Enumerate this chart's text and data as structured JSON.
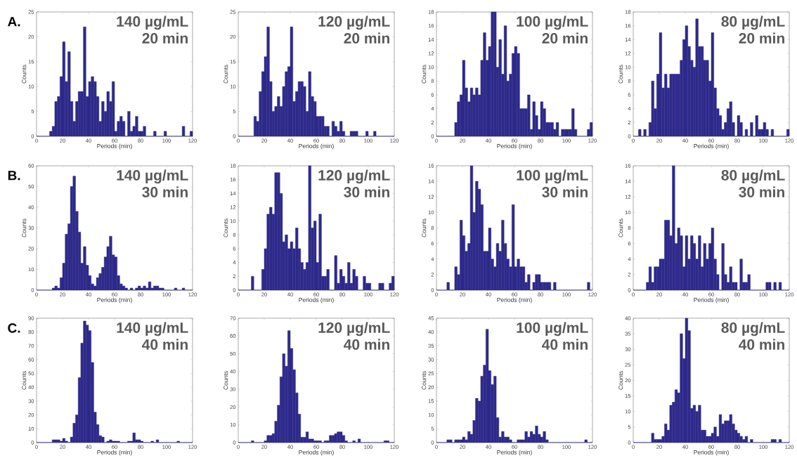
{
  "chart_data": [
    {
      "type": "histogram",
      "title": "140 µg/mL",
      "subtitle": "20 min",
      "xlabel": "Periods (min)",
      "ylabel": "Counts",
      "annotations": [
        "A."
      ],
      "color": "#2e2a8a",
      "xlim": [
        0,
        120
      ],
      "ylim": [
        0,
        25
      ],
      "xticks": [
        0,
        20,
        40,
        60,
        80,
        100,
        120
      ],
      "yticks": [
        0,
        5,
        10,
        15,
        20,
        25
      ],
      "bins": [
        0,
        2,
        4,
        6,
        8,
        10,
        12,
        14,
        16,
        18,
        20,
        22,
        24,
        26,
        28,
        30,
        32,
        34,
        36,
        38,
        40,
        42,
        44,
        46,
        48,
        50,
        52,
        54,
        56,
        58,
        60,
        62,
        64,
        66,
        68,
        70,
        72,
        74,
        76,
        78,
        80,
        82,
        84,
        86,
        88,
        90,
        92,
        94,
        96,
        98,
        100,
        102,
        104,
        106,
        108,
        110,
        112,
        114,
        116,
        118,
        120
      ],
      "values": [
        0,
        0,
        0,
        0,
        0,
        1,
        2,
        7,
        8,
        12,
        19,
        11,
        17,
        7,
        3,
        7,
        9,
        9,
        22,
        8,
        11,
        12,
        11,
        8,
        3,
        7,
        5,
        9,
        7,
        11,
        1,
        3,
        4,
        3,
        0,
        5,
        1,
        2,
        4,
        1,
        1,
        2,
        0,
        0,
        0,
        1,
        0,
        0,
        0,
        1,
        0,
        0,
        0,
        0,
        0,
        0,
        2,
        0,
        0,
        1
      ]
    },
    {
      "type": "histogram",
      "title": "120 µg/mL",
      "subtitle": "20 min",
      "xlabel": "Periods (min)",
      "ylabel": "Counts",
      "color": "#2e2a8a",
      "xlim": [
        0,
        120
      ],
      "ylim": [
        0,
        25
      ],
      "xticks": [
        0,
        20,
        40,
        60,
        80,
        100,
        120
      ],
      "yticks": [
        0,
        5,
        10,
        15,
        20,
        25
      ],
      "bins": [
        0,
        2,
        4,
        6,
        8,
        10,
        12,
        14,
        16,
        18,
        20,
        22,
        24,
        26,
        28,
        30,
        32,
        34,
        36,
        38,
        40,
        42,
        44,
        46,
        48,
        50,
        52,
        54,
        56,
        58,
        60,
        62,
        64,
        66,
        68,
        70,
        72,
        74,
        76,
        78,
        80,
        82,
        84,
        86,
        88,
        90,
        92,
        94,
        96,
        98,
        100,
        102,
        104,
        106,
        108,
        110,
        112,
        114,
        116,
        118,
        120
      ],
      "values": [
        0,
        0,
        0,
        0,
        0,
        0,
        4,
        3,
        9,
        13,
        16,
        22,
        11,
        5,
        6,
        8,
        6,
        10,
        13,
        14,
        22,
        7,
        9,
        11,
        11,
        10,
        5,
        13,
        8,
        7,
        4,
        4,
        4,
        2,
        2,
        0,
        3,
        2,
        1,
        3,
        1,
        0,
        0,
        1,
        1,
        1,
        0,
        0,
        0,
        1,
        0,
        0,
        1,
        0,
        0,
        0,
        0,
        0,
        0,
        0
      ]
    },
    {
      "type": "histogram",
      "title": "100 µg/mL",
      "subtitle": "20 min",
      "xlabel": "Periods (min)",
      "ylabel": "Counts",
      "color": "#2e2a8a",
      "xlim": [
        0,
        120
      ],
      "ylim": [
        0,
        18
      ],
      "xticks": [
        0,
        20,
        40,
        60,
        80,
        100,
        120
      ],
      "yticks": [
        0,
        2,
        4,
        6,
        8,
        10,
        12,
        14,
        16,
        18
      ],
      "bins": [
        0,
        2,
        4,
        6,
        8,
        10,
        12,
        14,
        16,
        18,
        20,
        22,
        24,
        26,
        28,
        30,
        32,
        34,
        36,
        38,
        40,
        42,
        44,
        46,
        48,
        50,
        52,
        54,
        56,
        58,
        60,
        62,
        64,
        66,
        68,
        70,
        72,
        74,
        76,
        78,
        80,
        82,
        84,
        86,
        88,
        90,
        92,
        94,
        96,
        98,
        100,
        102,
        104,
        106,
        108,
        110,
        112,
        114,
        116,
        118,
        120
      ],
      "values": [
        0,
        0,
        0,
        0,
        0,
        0,
        0,
        2,
        5,
        6,
        11,
        7,
        5,
        7,
        6,
        7,
        6,
        11,
        15,
        11,
        13,
        18,
        18,
        10,
        14,
        9,
        16,
        8,
        9,
        12,
        13,
        12,
        4,
        4,
        4,
        6,
        1,
        5,
        3,
        1,
        5,
        4,
        2,
        2,
        2,
        1,
        2,
        0,
        1,
        1,
        1,
        1,
        4,
        1,
        0,
        0,
        0,
        0,
        1,
        2
      ]
    },
    {
      "type": "histogram",
      "title": "80 µg/mL",
      "subtitle": "20 min",
      "xlabel": "Periods (min)",
      "ylabel": "Counts",
      "color": "#2e2a8a",
      "xlim": [
        0,
        120
      ],
      "ylim": [
        0,
        18
      ],
      "xticks": [
        0,
        20,
        40,
        60,
        80,
        100,
        120
      ],
      "yticks": [
        0,
        2,
        4,
        6,
        8,
        10,
        12,
        14,
        16,
        18
      ],
      "bins": [
        0,
        2,
        4,
        6,
        8,
        10,
        12,
        14,
        16,
        18,
        20,
        22,
        24,
        26,
        28,
        30,
        32,
        34,
        36,
        38,
        40,
        42,
        44,
        46,
        48,
        50,
        52,
        54,
        56,
        58,
        60,
        62,
        64,
        66,
        68,
        70,
        72,
        74,
        76,
        78,
        80,
        82,
        84,
        86,
        88,
        90,
        92,
        94,
        96,
        98,
        100,
        102,
        104,
        106,
        108,
        110,
        112,
        114,
        116,
        118,
        120
      ],
      "values": [
        0,
        0,
        1,
        0,
        1,
        0,
        2,
        8,
        4,
        9,
        15,
        7,
        9,
        7,
        9,
        9,
        9,
        9,
        11,
        14,
        16,
        13,
        11,
        10,
        17,
        13,
        13,
        11,
        11,
        8,
        15,
        7,
        4,
        3,
        1,
        2,
        4,
        5,
        2,
        0,
        3,
        2,
        0,
        1,
        0,
        2,
        0,
        3,
        1,
        1,
        2,
        1,
        0,
        1,
        0,
        0,
        0,
        0,
        0,
        1
      ]
    },
    {
      "type": "histogram",
      "title": "140 µg/mL",
      "subtitle": "30 min",
      "xlabel": "Periods (min)",
      "ylabel": "Counts",
      "annotations": [
        "B."
      ],
      "color": "#2e2a8a",
      "xlim": [
        0,
        120
      ],
      "ylim": [
        0,
        60
      ],
      "xticks": [
        0,
        20,
        40,
        60,
        80,
        100,
        120
      ],
      "yticks": [
        0,
        10,
        20,
        30,
        40,
        50,
        60
      ],
      "bins": [
        0,
        2,
        4,
        6,
        8,
        10,
        12,
        14,
        16,
        18,
        20,
        22,
        24,
        26,
        28,
        30,
        32,
        34,
        36,
        38,
        40,
        42,
        44,
        46,
        48,
        50,
        52,
        54,
        56,
        58,
        60,
        62,
        64,
        66,
        68,
        70,
        72,
        74,
        76,
        78,
        80,
        82,
        84,
        86,
        88,
        90,
        92,
        94,
        96,
        98,
        100,
        102,
        104,
        106,
        108,
        110,
        112,
        114,
        116,
        118,
        120
      ],
      "values": [
        0,
        0,
        0,
        0,
        0,
        0,
        1,
        2,
        1,
        6,
        13,
        27,
        32,
        50,
        55,
        38,
        28,
        13,
        21,
        12,
        7,
        3,
        2,
        6,
        8,
        11,
        16,
        21,
        26,
        17,
        16,
        7,
        3,
        2,
        1,
        0,
        1,
        0,
        1,
        2,
        1,
        2,
        1,
        4,
        1,
        2,
        2,
        1,
        1,
        0,
        0,
        0,
        0,
        1,
        0,
        0,
        1,
        0,
        0,
        0
      ]
    },
    {
      "type": "histogram",
      "title": "120 µg/mL",
      "subtitle": "30 min",
      "xlabel": "Periods (min)",
      "ylabel": "Counts",
      "color": "#2e2a8a",
      "xlim": [
        0,
        120
      ],
      "ylim": [
        0,
        18
      ],
      "xticks": [
        0,
        20,
        40,
        60,
        80,
        100,
        120
      ],
      "yticks": [
        0,
        2,
        4,
        6,
        8,
        10,
        12,
        14,
        16,
        18
      ],
      "bins": [
        0,
        2,
        4,
        6,
        8,
        10,
        12,
        14,
        16,
        18,
        20,
        22,
        24,
        26,
        28,
        30,
        32,
        34,
        36,
        38,
        40,
        42,
        44,
        46,
        48,
        50,
        52,
        54,
        56,
        58,
        60,
        62,
        64,
        66,
        68,
        70,
        72,
        74,
        76,
        78,
        80,
        82,
        84,
        86,
        88,
        90,
        92,
        94,
        96,
        98,
        100,
        102,
        104,
        106,
        108,
        110,
        112,
        114,
        116,
        118,
        120
      ],
      "values": [
        0,
        0,
        0,
        0,
        0,
        2,
        0,
        0,
        0,
        3,
        6,
        11,
        12,
        11,
        17,
        17,
        14,
        7,
        8,
        6,
        7,
        6,
        9,
        6,
        4,
        3,
        4,
        18,
        9,
        10,
        4,
        11,
        2,
        2,
        3,
        0,
        0,
        5,
        1,
        3,
        2,
        1,
        4,
        1,
        3,
        2,
        0,
        0,
        2,
        1,
        1,
        0,
        0,
        0,
        1,
        1,
        0,
        0,
        1,
        2
      ]
    },
    {
      "type": "histogram",
      "title": "100 µg/mL",
      "subtitle": "30 min",
      "xlabel": "Periods (min)",
      "ylabel": "Counts",
      "color": "#2e2a8a",
      "xlim": [
        0,
        120
      ],
      "ylim": [
        0,
        16
      ],
      "xticks": [
        0,
        20,
        40,
        60,
        80,
        100,
        120
      ],
      "yticks": [
        0,
        2,
        4,
        6,
        8,
        10,
        12,
        14,
        16
      ],
      "bins": [
        0,
        2,
        4,
        6,
        8,
        10,
        12,
        14,
        16,
        18,
        20,
        22,
        24,
        26,
        28,
        30,
        32,
        34,
        36,
        38,
        40,
        42,
        44,
        46,
        48,
        50,
        52,
        54,
        56,
        58,
        60,
        62,
        64,
        66,
        68,
        70,
        72,
        74,
        76,
        78,
        80,
        82,
        84,
        86,
        88,
        90,
        92,
        94,
        96,
        98,
        100,
        102,
        104,
        106,
        108,
        110,
        112,
        114,
        116,
        118,
        120
      ],
      "values": [
        0,
        0,
        0,
        0,
        1,
        0,
        0,
        3,
        2,
        9,
        7,
        5,
        6,
        16,
        10,
        14,
        13,
        11,
        5,
        5,
        8,
        4,
        3,
        6,
        5,
        9,
        6,
        4,
        3,
        11,
        3,
        4,
        3,
        3,
        1,
        2,
        0,
        1,
        2,
        2,
        1,
        1,
        1,
        1,
        0,
        1,
        0,
        0,
        0,
        0,
        0,
        0,
        0,
        0,
        0,
        0,
        0,
        0,
        1,
        0
      ]
    },
    {
      "type": "histogram",
      "title": "80 µg/mL",
      "subtitle": "30 min",
      "xlabel": "Periods (min)",
      "ylabel": "Counts",
      "color": "#2e2a8a",
      "xlim": [
        0,
        120
      ],
      "ylim": [
        0,
        16
      ],
      "xticks": [
        0,
        20,
        40,
        60,
        80,
        100,
        120
      ],
      "yticks": [
        0,
        2,
        4,
        6,
        8,
        10,
        12,
        14,
        16
      ],
      "bins": [
        0,
        2,
        4,
        6,
        8,
        10,
        12,
        14,
        16,
        18,
        20,
        22,
        24,
        26,
        28,
        30,
        32,
        34,
        36,
        38,
        40,
        42,
        44,
        46,
        48,
        50,
        52,
        54,
        56,
        58,
        60,
        62,
        64,
        66,
        68,
        70,
        72,
        74,
        76,
        78,
        80,
        82,
        84,
        86,
        88,
        90,
        92,
        94,
        96,
        98,
        100,
        102,
        104,
        106,
        108,
        110,
        112,
        114,
        116,
        118,
        120
      ],
      "values": [
        0,
        0,
        0,
        0,
        0,
        1,
        3,
        1,
        3,
        3,
        4,
        4,
        9,
        9,
        7,
        16,
        6,
        8,
        7,
        3,
        7,
        4,
        7,
        6,
        4,
        7,
        3,
        6,
        4,
        6,
        8,
        4,
        2,
        0,
        6,
        2,
        1,
        3,
        1,
        1,
        0,
        4,
        1,
        1,
        2,
        0,
        0,
        0,
        0,
        0,
        0,
        1,
        1,
        0,
        1,
        0,
        1,
        0,
        0,
        0
      ]
    },
    {
      "type": "histogram",
      "title": "140 µg/mL",
      "subtitle": "40 min",
      "xlabel": "Periods (min)",
      "ylabel": "Counts",
      "annotations": [
        "C."
      ],
      "color": "#2e2a8a",
      "xlim": [
        0,
        120
      ],
      "ylim": [
        0,
        90
      ],
      "xticks": [
        0,
        20,
        40,
        60,
        80,
        100,
        120
      ],
      "yticks": [
        0,
        10,
        20,
        30,
        40,
        50,
        60,
        70,
        80,
        90
      ],
      "bins": [
        0,
        2,
        4,
        6,
        8,
        10,
        12,
        14,
        16,
        18,
        20,
        22,
        24,
        26,
        28,
        30,
        32,
        34,
        36,
        38,
        40,
        42,
        44,
        46,
        48,
        50,
        52,
        54,
        56,
        58,
        60,
        62,
        64,
        66,
        68,
        70,
        72,
        74,
        76,
        78,
        80,
        82,
        84,
        86,
        88,
        90,
        92,
        94,
        96,
        98,
        100,
        102,
        104,
        106,
        108,
        110,
        112,
        114,
        116,
        118,
        120
      ],
      "values": [
        0,
        0,
        0,
        0,
        0,
        0,
        2,
        2,
        2,
        1,
        3,
        1,
        0,
        4,
        14,
        20,
        47,
        72,
        88,
        85,
        81,
        58,
        22,
        13,
        5,
        4,
        0,
        1,
        2,
        1,
        1,
        1,
        0,
        0,
        0,
        1,
        1,
        7,
        2,
        2,
        1,
        0,
        0,
        0,
        1,
        0,
        2,
        0,
        0,
        0,
        0,
        0,
        0,
        0,
        1,
        0,
        0,
        0,
        0,
        0
      ]
    },
    {
      "type": "histogram",
      "title": "120 µg/mL",
      "subtitle": "40 min",
      "xlabel": "Periods (min)",
      "ylabel": "Counts",
      "color": "#2e2a8a",
      "xlim": [
        0,
        120
      ],
      "ylim": [
        0,
        70
      ],
      "xticks": [
        0,
        20,
        40,
        60,
        80,
        100,
        120
      ],
      "yticks": [
        0,
        10,
        20,
        30,
        40,
        50,
        60,
        70
      ],
      "bins": [
        0,
        2,
        4,
        6,
        8,
        10,
        12,
        14,
        16,
        18,
        20,
        22,
        24,
        26,
        28,
        30,
        32,
        34,
        36,
        38,
        40,
        42,
        44,
        46,
        48,
        50,
        52,
        54,
        56,
        58,
        60,
        62,
        64,
        66,
        68,
        70,
        72,
        74,
        76,
        78,
        80,
        82,
        84,
        86,
        88,
        90,
        92,
        94,
        96,
        98,
        100,
        102,
        104,
        106,
        108,
        110,
        112,
        114,
        116,
        118,
        120
      ],
      "values": [
        0,
        0,
        0,
        0,
        0,
        1,
        0,
        0,
        0,
        0,
        1,
        4,
        4,
        5,
        12,
        21,
        37,
        50,
        43,
        63,
        53,
        41,
        28,
        16,
        3,
        3,
        6,
        2,
        2,
        1,
        1,
        1,
        0,
        1,
        1,
        4,
        4,
        5,
        6,
        6,
        4,
        1,
        0,
        0,
        1,
        0,
        2,
        0,
        0,
        0,
        0,
        0,
        0,
        0,
        0,
        0,
        1,
        1,
        0,
        0
      ]
    },
    {
      "type": "histogram",
      "title": "100 µg/mL",
      "subtitle": "40 min",
      "xlabel": "Periods (min)",
      "ylabel": "Counts",
      "color": "#2e2a8a",
      "xlim": [
        0,
        120
      ],
      "ylim": [
        0,
        45
      ],
      "xticks": [
        0,
        20,
        40,
        60,
        80,
        100,
        120
      ],
      "yticks": [
        0,
        5,
        10,
        15,
        20,
        25,
        30,
        35,
        40,
        45
      ],
      "bins": [
        0,
        2,
        4,
        6,
        8,
        10,
        12,
        14,
        16,
        18,
        20,
        22,
        24,
        26,
        28,
        30,
        32,
        34,
        36,
        38,
        40,
        42,
        44,
        46,
        48,
        50,
        52,
        54,
        56,
        58,
        60,
        62,
        64,
        66,
        68,
        70,
        72,
        74,
        76,
        78,
        80,
        82,
        84,
        86,
        88,
        90,
        92,
        94,
        96,
        98,
        100,
        102,
        104,
        106,
        108,
        110,
        112,
        114,
        116,
        118,
        120
      ],
      "values": [
        0,
        0,
        0,
        0,
        1,
        1,
        0,
        1,
        1,
        1,
        2,
        1,
        4,
        3,
        8,
        16,
        15,
        24,
        28,
        41,
        26,
        21,
        24,
        9,
        2,
        4,
        2,
        2,
        1,
        0,
        0,
        1,
        1,
        1,
        4,
        2,
        4,
        3,
        6,
        3,
        2,
        4,
        1,
        0,
        0,
        0,
        0,
        0,
        0,
        0,
        0,
        0,
        0,
        0,
        0,
        0,
        0,
        1,
        0,
        0
      ]
    },
    {
      "type": "histogram",
      "title": "80 µg/mL",
      "subtitle": "40 min",
      "xlabel": "Periods (min)",
      "ylabel": "Counts",
      "color": "#2e2a8a",
      "xlim": [
        0,
        120
      ],
      "ylim": [
        0,
        40
      ],
      "xticks": [
        0,
        20,
        40,
        60,
        80,
        100,
        120
      ],
      "yticks": [
        0,
        5,
        10,
        15,
        20,
        25,
        30,
        35,
        40
      ],
      "bins": [
        0,
        2,
        4,
        6,
        8,
        10,
        12,
        14,
        16,
        18,
        20,
        22,
        24,
        26,
        28,
        30,
        32,
        34,
        36,
        38,
        40,
        42,
        44,
        46,
        48,
        50,
        52,
        54,
        56,
        58,
        60,
        62,
        64,
        66,
        68,
        70,
        72,
        74,
        76,
        78,
        80,
        82,
        84,
        86,
        88,
        90,
        92,
        94,
        96,
        98,
        100,
        102,
        104,
        106,
        108,
        110,
        112,
        114,
        116,
        118,
        120
      ],
      "values": [
        0,
        0,
        0,
        0,
        0,
        0,
        0,
        3,
        1,
        1,
        1,
        2,
        6,
        4,
        12,
        13,
        17,
        16,
        35,
        27,
        40,
        36,
        11,
        12,
        10,
        12,
        4,
        4,
        2,
        2,
        3,
        5,
        2,
        9,
        6,
        7,
        7,
        9,
        6,
        4,
        3,
        2,
        1,
        2,
        0,
        1,
        0,
        0,
        0,
        0,
        0,
        0,
        0,
        1,
        1,
        0,
        1,
        0,
        0,
        0
      ]
    }
  ]
}
